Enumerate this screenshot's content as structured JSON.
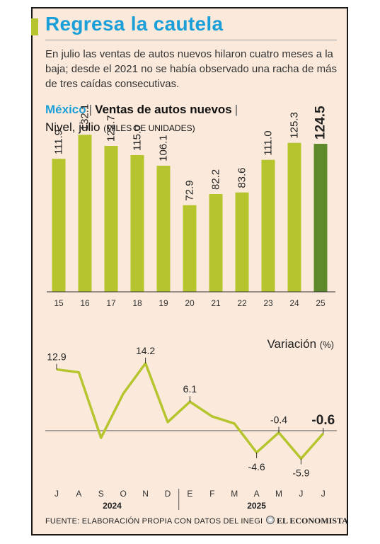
{
  "title": "Regresa la cautela",
  "subtitle": "En julio las ventas de autos nuevos hilaron cuatro meses a la baja; desde el 2021 no se había observado una racha de más de tres caídas consecutivas.",
  "header": {
    "country": "México",
    "separator": "|",
    "topic": "Ventas de autos nuevos",
    "level_label": "Nivel, julio",
    "units": "(MILES DE UNIDADES)"
  },
  "footer": {
    "source": "FUENTE: ELABORACIÓN PROPIA CON DATOS DEL INEGI",
    "logo_text": "EL ECONOMISTA"
  },
  "colors": {
    "bar": "#b6c52d",
    "bar_highlight": "#5e8a2c",
    "title_blue": "#1b9fd8",
    "background": "#fbeadb"
  },
  "chart_data": [
    {
      "type": "bar",
      "categories": [
        "15",
        "16",
        "17",
        "18",
        "19",
        "20",
        "21",
        "22",
        "23",
        "24",
        "25"
      ],
      "values": [
        111.9,
        132.1,
        122.7,
        115.0,
        106.1,
        72.9,
        82.2,
        83.6,
        111.0,
        125.3,
        124.5
      ],
      "value_labels": [
        "111.9",
        "132.1",
        "122.7",
        "115.0",
        "106.1",
        "72.9",
        "82.2",
        "83.6",
        "111.0",
        "125.3",
        "124.5"
      ],
      "highlight_index": 10,
      "ylim": [
        0,
        140
      ],
      "title": "",
      "xlabel": "",
      "ylabel": ""
    },
    {
      "type": "line",
      "title": "Variación",
      "unit": "(%)",
      "categories": [
        "J",
        "A",
        "S",
        "O",
        "N",
        "D",
        "E",
        "F",
        "M",
        "A",
        "M",
        "J",
        "J"
      ],
      "year_labels": [
        {
          "label": "2024",
          "from": 0,
          "to": 5
        },
        {
          "label": "2025",
          "from": 6,
          "to": 12
        }
      ],
      "values": [
        12.9,
        12.3,
        -1.5,
        7.8,
        14.2,
        1.8,
        6.1,
        3.0,
        1.5,
        -4.6,
        -0.4,
        -5.9,
        -0.6
      ],
      "labeled_points": [
        {
          "index": 0,
          "label": "12.9",
          "position": "above"
        },
        {
          "index": 4,
          "label": "14.2",
          "position": "above"
        },
        {
          "index": 6,
          "label": "6.1",
          "position": "above"
        },
        {
          "index": 9,
          "label": "-4.6",
          "position": "below"
        },
        {
          "index": 10,
          "label": "-0.4",
          "position": "above"
        },
        {
          "index": 11,
          "label": "-5.9",
          "position": "below"
        },
        {
          "index": 12,
          "label": "-0.6",
          "position": "above",
          "bold": true
        }
      ],
      "ylim": [
        -9,
        17
      ],
      "zero_line": true
    }
  ]
}
